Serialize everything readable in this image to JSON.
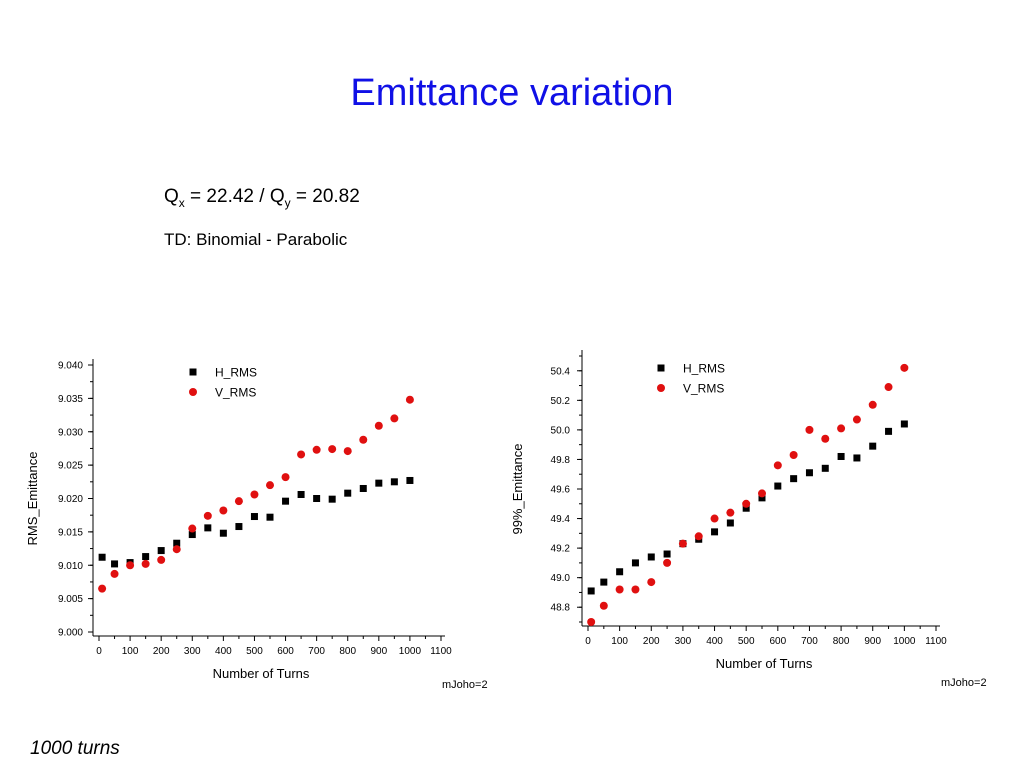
{
  "slide": {
    "title": "Emittance variation",
    "q_line": {
      "qx_symbol": "Q",
      "qx_sub": "x",
      "qx_value": " = 22.42 / ",
      "qy_symbol": "Q",
      "qy_sub": "y",
      "qy_value": " = 20.82"
    },
    "td_line": "TD: Binomial - Parabolic",
    "footer_note": "1000 turns"
  },
  "colors": {
    "title": "#1010e6",
    "h_series": "#000000",
    "v_series": "#e01010"
  },
  "chart_data": [
    {
      "type": "scatter",
      "xlabel": "Number of Turns",
      "ylabel": "RMS_Emittance",
      "annotation": "mJoho=2",
      "xlim": [
        0,
        1100
      ],
      "ylim": [
        9.0,
        9.04
      ],
      "xticks": [
        "0",
        "100",
        "200",
        "300",
        "400",
        "500",
        "600",
        "700",
        "800",
        "900",
        "1000",
        "1100"
      ],
      "yticks": [
        "9.000",
        "9.005",
        "9.010",
        "9.015",
        "9.020",
        "9.025",
        "9.030",
        "9.035",
        "9.040"
      ],
      "legend_position": "top-center",
      "series": [
        {
          "name": "H_RMS",
          "marker": "square",
          "color": "#000000",
          "x": [
            10,
            50,
            100,
            150,
            200,
            250,
            300,
            350,
            400,
            450,
            500,
            550,
            600,
            650,
            700,
            750,
            800,
            850,
            900,
            950,
            1000
          ],
          "y": [
            9.0112,
            9.0102,
            9.0104,
            9.0113,
            9.0122,
            9.0133,
            9.0146,
            9.0156,
            9.0148,
            9.0158,
            9.0173,
            9.0172,
            9.0196,
            9.0206,
            9.02,
            9.0199,
            9.0208,
            9.0215,
            9.0223,
            9.0225,
            9.0227
          ]
        },
        {
          "name": "V_RMS",
          "marker": "circle",
          "color": "#e01010",
          "x": [
            10,
            50,
            100,
            150,
            200,
            250,
            300,
            350,
            400,
            450,
            500,
            550,
            600,
            650,
            700,
            750,
            800,
            850,
            900,
            950,
            1000
          ],
          "y": [
            9.0065,
            9.0087,
            9.01,
            9.0102,
            9.0108,
            9.0124,
            9.0155,
            9.0174,
            9.0182,
            9.0196,
            9.0206,
            9.022,
            9.0232,
            9.0266,
            9.0273,
            9.0274,
            9.0271,
            9.0288,
            9.0309,
            9.032,
            9.0348
          ]
        }
      ]
    },
    {
      "type": "scatter",
      "xlabel": "Number of Turns",
      "ylabel": "99%_Emittance",
      "annotation": "mJoho=2",
      "xlim": [
        0,
        1100
      ],
      "ylim": [
        48.7,
        50.5
      ],
      "xticks": [
        "0",
        "100",
        "200",
        "300",
        "400",
        "500",
        "600",
        "700",
        "800",
        "900",
        "1000",
        "1100"
      ],
      "yticks": [
        "48.8",
        "49.0",
        "49.2",
        "49.4",
        "49.6",
        "49.8",
        "50.0",
        "50.2",
        "50.4"
      ],
      "legend_position": "top-center",
      "series": [
        {
          "name": "H_RMS",
          "marker": "square",
          "color": "#000000",
          "x": [
            10,
            50,
            100,
            150,
            200,
            250,
            300,
            350,
            400,
            450,
            500,
            550,
            600,
            650,
            700,
            750,
            800,
            850,
            900,
            950,
            1000
          ],
          "y": [
            48.91,
            48.97,
            49.04,
            49.1,
            49.14,
            49.16,
            49.23,
            49.26,
            49.31,
            49.37,
            49.47,
            49.54,
            49.62,
            49.67,
            49.71,
            49.74,
            49.82,
            49.81,
            49.89,
            49.99,
            50.04
          ]
        },
        {
          "name": "V_RMS",
          "marker": "circle",
          "color": "#e01010",
          "x": [
            10,
            50,
            100,
            150,
            200,
            250,
            300,
            350,
            400,
            450,
            500,
            550,
            600,
            650,
            700,
            750,
            800,
            850,
            900,
            950,
            1000
          ],
          "y": [
            48.7,
            48.81,
            48.92,
            48.92,
            48.97,
            49.1,
            49.23,
            49.28,
            49.4,
            49.44,
            49.5,
            49.57,
            49.76,
            49.83,
            50.0,
            49.94,
            50.01,
            50.07,
            50.17,
            50.29,
            50.42
          ]
        }
      ]
    }
  ]
}
